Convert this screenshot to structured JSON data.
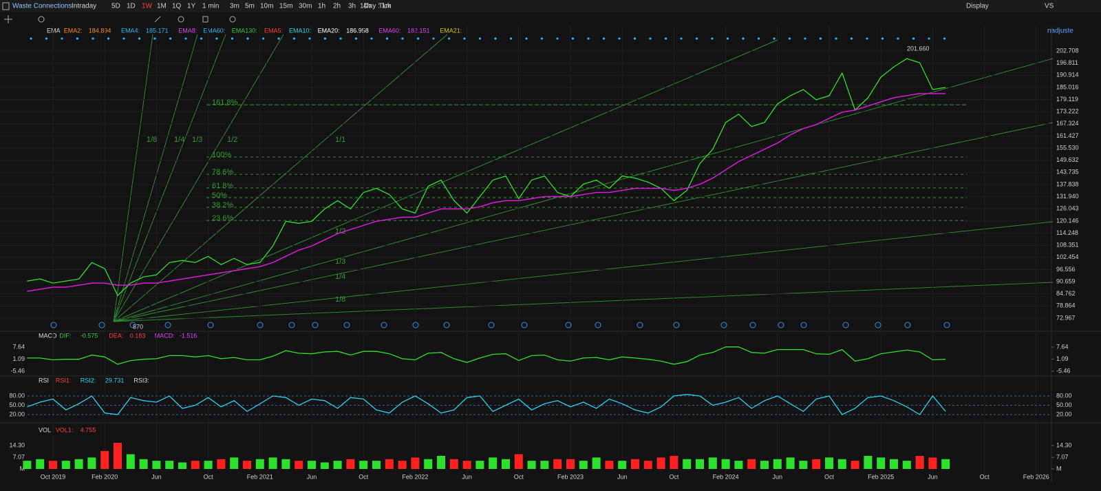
{
  "toolbar": {
    "symbol": "Waste Connections",
    "periods": [
      "Intraday",
      "5D",
      "1D",
      "1W",
      "1M",
      "1Q",
      "1Y",
      "1 min",
      "3m",
      "5m",
      "10m",
      "15m",
      "30m",
      "1h",
      "2h",
      "3h",
      "4h",
      "Tick"
    ],
    "active": "1W",
    "interval": "1Day : 1m",
    "display": "Display",
    "compare": "VS",
    "adjust": "nadjuste"
  },
  "chart": {
    "type": "line",
    "legend": [
      {
        "text": "EMA",
        "color": "#dddddd"
      },
      {
        "text": "EMA2:",
        "color": "#ff8c1a"
      },
      {
        "text": "184.894",
        "color": "#ff8c1a"
      },
      {
        "text": "EMA4:",
        "color": "#29b6f6"
      },
      {
        "text": "185.171",
        "color": "#29b6f6"
      },
      {
        "text": "EMA8:",
        "color": "#e040fb"
      },
      {
        "text": "EMA60:",
        "color": "#29b6f6"
      },
      {
        "text": "EMA130:",
        "color": "#2ecc40"
      },
      {
        "text": "EMA5:",
        "color": "#ff3b3b"
      },
      {
        "text": "EMA10:",
        "color": "#29d3f0"
      },
      {
        "text": "EMA20:",
        "color": "#ffffff"
      },
      {
        "text": "186.958",
        "color": "#ffffff"
      },
      {
        "text": "EMA60:",
        "color": "#e040fb"
      },
      {
        "text": "182.151",
        "color": "#e040fb"
      },
      {
        "text": "EMA21:",
        "color": "#d4c600"
      }
    ],
    "ylim": [
      66.95,
      214.75
    ],
    "yticks": [
      202.708,
      196.811,
      190.914,
      185.016,
      179.119,
      173.222,
      167.324,
      161.427,
      {
        "value": 155.53,
        "label": "155.530"
      },
      149.632,
      143.735,
      137.838,
      {
        "value": 131.94,
        "label": "131.940"
      },
      126.043,
      120.146,
      114.248,
      108.351,
      102.454,
      96.556,
      90.659,
      84.762,
      78.864,
      72.967
    ],
    "xticks": [
      "Oct 2019",
      "Feb 2020",
      "Jun",
      "Oct",
      "Feb 2021",
      "Jun",
      "Oct",
      "Feb 2022",
      "Jun",
      "Oct",
      "Feb 2023",
      "Jun",
      "Oct",
      "Feb 2024",
      "Jun",
      "Oct",
      "Feb 2025",
      "Jun",
      "Oct",
      "Feb 2026"
    ],
    "series": [
      {
        "color": "#2ee02e",
        "values": [
          91,
          92,
          90,
          91,
          92,
          100,
          97,
          84,
          90,
          93,
          94,
          100,
          101,
          100,
          103,
          99,
          102,
          99,
          100,
          108,
          120,
          119,
          120,
          126,
          130,
          126,
          134,
          136,
          133,
          126,
          124,
          137,
          140,
          130,
          124,
          132,
          140,
          142,
          131,
          140,
          142,
          134,
          132,
          138,
          140,
          136,
          142,
          141,
          139,
          136,
          130,
          135,
          148,
          155,
          168,
          172,
          166,
          168,
          177,
          181,
          184,
          179,
          181,
          192,
          174,
          180,
          190,
          195,
          199,
          197,
          184,
          185
        ]
      },
      {
        "color": "#d81bd8",
        "values": [
          86,
          87,
          88,
          88,
          89,
          90,
          90,
          89,
          89,
          90,
          90,
          91,
          92,
          93,
          94,
          95,
          96,
          97,
          98,
          100,
          103,
          106,
          108,
          111,
          114,
          116,
          118,
          120,
          121,
          122,
          122,
          124,
          126,
          126,
          126,
          127,
          129,
          130,
          130,
          131,
          132,
          132,
          132,
          133,
          134,
          134,
          135,
          136,
          136,
          136,
          135,
          136,
          138,
          141,
          145,
          149,
          152,
          155,
          158,
          162,
          165,
          167,
          170,
          173,
          174,
          176,
          178,
          180,
          181,
          182,
          182,
          182
        ]
      }
    ],
    "annotations": [
      "201.660",
      "870"
    ],
    "fib": [
      {
        "label": "161.8%",
        "value": 176.6
      },
      {
        "label": "100%",
        "value": 151.2
      },
      {
        "label": "78.6%",
        "value": 142.8
      },
      {
        "label": "61.8%",
        "value": 136.2
      },
      {
        "label": "50%",
        "value": 131.5
      },
      {
        "label": "38.2%",
        "value": 126.8
      },
      {
        "label": "23.6%",
        "value": 120.4
      }
    ],
    "fan_labels": [
      "1/8",
      "1/4",
      "1/3",
      "1/2",
      "1/1",
      "1/2",
      "1/3",
      "1/4",
      "1/8"
    ],
    "macd": {
      "legend": [
        {
          "text": "MACD",
          "color": "#dddddd"
        },
        {
          "text": "DIF:",
          "color": "#2ecc40"
        },
        {
          "text": "-0.575",
          "color": "#2ecc40"
        },
        {
          "text": "DEA:",
          "color": "#ff3b3b"
        },
        {
          "text": "0.183",
          "color": "#ff3b3b"
        },
        {
          "text": "MACD:",
          "color": "#e040fb"
        },
        {
          "text": "-1.516",
          "color": "#e040fb"
        }
      ],
      "ylim": [
        -7.71,
        11.38
      ],
      "yticks": [
        7.64,
        1.09,
        -5.46
      ],
      "color": "#2ee02e",
      "values": [
        1.7,
        1.7,
        0.7,
        1.0,
        1.0,
        3.3,
        2.3,
        -1.7,
        0.3,
        1.0,
        1.3,
        3.0,
        3.0,
        2.3,
        3.0,
        1.3,
        2.0,
        0.7,
        0.7,
        2.7,
        5.7,
        4.3,
        4.0,
        5.0,
        5.3,
        3.3,
        5.3,
        5.3,
        4.0,
        1.3,
        0.7,
        4.3,
        4.7,
        1.3,
        -0.7,
        1.7,
        3.7,
        4.0,
        0.3,
        3.0,
        3.3,
        0.7,
        0,
        1.7,
        2.0,
        0.7,
        2.3,
        1.7,
        1.0,
        0,
        -1.7,
        -0.3,
        3.3,
        4.7,
        7.7,
        7.7,
        4.7,
        4.3,
        6.3,
        6.3,
        6.3,
        4.0,
        3.7,
        6.3,
        0,
        1.3,
        4.0,
        5.0,
        6.0,
        5.0,
        0.7,
        1.0
      ]
    },
    "rsi": {
      "legend": [
        {
          "text": "RSI",
          "color": "#dddddd"
        },
        {
          "text": "RSI1:",
          "color": "#ff3b3b"
        },
        {
          "text": "RSI2:",
          "color": "#29d3f0"
        },
        {
          "text": "29.731",
          "color": "#29d3f0"
        },
        {
          "text": "RSI3:",
          "color": "#dddddd"
        }
      ],
      "ylim": [
        0,
        100
      ],
      "yticks": [
        {
          "value": 80,
          "label": "80.00"
        },
        {
          "value": 50,
          "label": "50.00"
        },
        {
          "value": 20,
          "label": "20.00"
        }
      ],
      "color": "#29d3f0",
      "values": [
        45,
        60,
        70,
        35,
        55,
        80,
        25,
        20,
        75,
        65,
        60,
        80,
        40,
        50,
        75,
        45,
        65,
        30,
        55,
        80,
        75,
        50,
        70,
        65,
        40,
        75,
        70,
        35,
        25,
        60,
        80,
        55,
        25,
        35,
        75,
        80,
        30,
        50,
        70,
        35,
        55,
        65,
        45,
        60,
        40,
        70,
        55,
        35,
        25,
        45,
        80,
        85,
        80,
        50,
        60,
        75,
        40,
        65,
        80,
        55,
        30,
        70,
        80,
        20,
        40,
        75,
        80,
        65,
        45,
        20,
        80,
        30
      ]
    },
    "volume": {
      "legend": [
        {
          "text": "VOL",
          "color": "#dddddd"
        },
        {
          "text": "VOL1:",
          "color": "#ff3b3b"
        },
        {
          "text": "4.755",
          "color": "#ff3b3b"
        }
      ],
      "ylim": [
        0,
        25.65
      ],
      "yticks": [
        {
          "value": 14.3,
          "label": "14.30"
        },
        7.07,
        {
          "value": 0,
          "label": "M"
        }
      ],
      "up_color": "#2ee02e",
      "down_color": "#ff2020",
      "values": [
        5,
        6,
        5,
        5,
        6,
        7,
        11,
        16,
        9,
        6,
        5,
        5,
        4,
        5,
        5,
        6,
        7,
        5,
        6,
        7,
        6,
        5,
        5,
        4,
        5,
        6,
        5,
        5,
        6,
        5,
        7,
        6,
        8,
        6,
        5,
        5,
        7,
        6,
        9,
        5,
        5,
        6,
        6,
        5,
        7,
        5,
        5,
        6,
        5,
        7,
        8,
        6,
        6,
        7,
        6,
        5,
        6,
        5,
        6,
        7,
        5,
        6,
        7,
        6,
        5,
        8,
        7,
        6,
        5,
        8,
        7,
        6
      ]
    }
  }
}
